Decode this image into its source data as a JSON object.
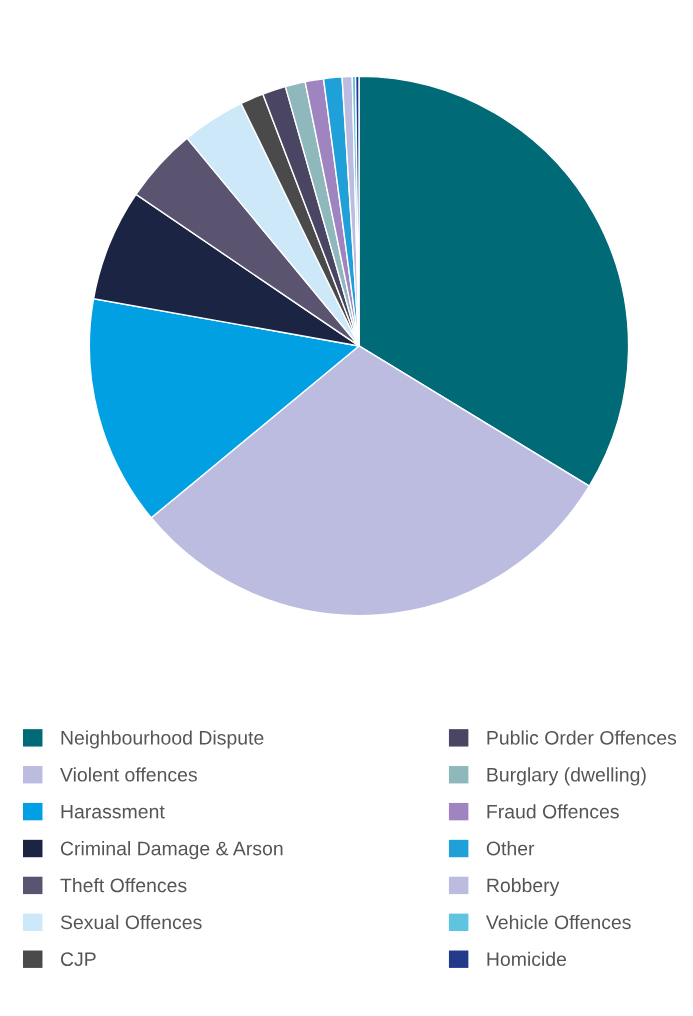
{
  "chart_data": {
    "type": "pie",
    "categories": [
      "Neighbourhood Dispute",
      "Violent offences",
      "Harassment",
      "Criminal Damage & Arson",
      "Theft Offences",
      "Sexual Offences",
      "CJP",
      "Public Order Offences",
      "Burglary (dwelling)",
      "Fraud Offences",
      "Other",
      "Robbery",
      "Vehicle Offences",
      "Homicide"
    ],
    "values": [
      33.7,
      30.3,
      13.8,
      6.7,
      4.5,
      3.8,
      1.4,
      1.4,
      1.2,
      1.1,
      1.1,
      0.6,
      0.2,
      0.2
    ],
    "colors": [
      "#006a77",
      "#bcbbe0",
      "#00a0e3",
      "#1b2442",
      "#5a5470",
      "#cde9f9",
      "#4a4a4a",
      "#4a4563",
      "#8fb8bc",
      "#a084c0",
      "#1fa0d8",
      "#bcbbe0",
      "#5fc4e0",
      "#233a8a"
    ],
    "legend": "bottom"
  }
}
